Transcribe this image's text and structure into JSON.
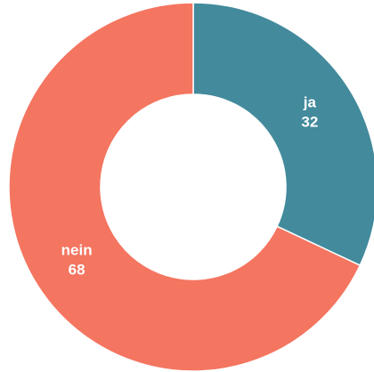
{
  "chart_data": {
    "type": "donut",
    "categories": [
      "ja",
      "nein"
    ],
    "values": [
      32,
      68
    ],
    "colors": [
      "#428a9c",
      "#f47560"
    ]
  }
}
